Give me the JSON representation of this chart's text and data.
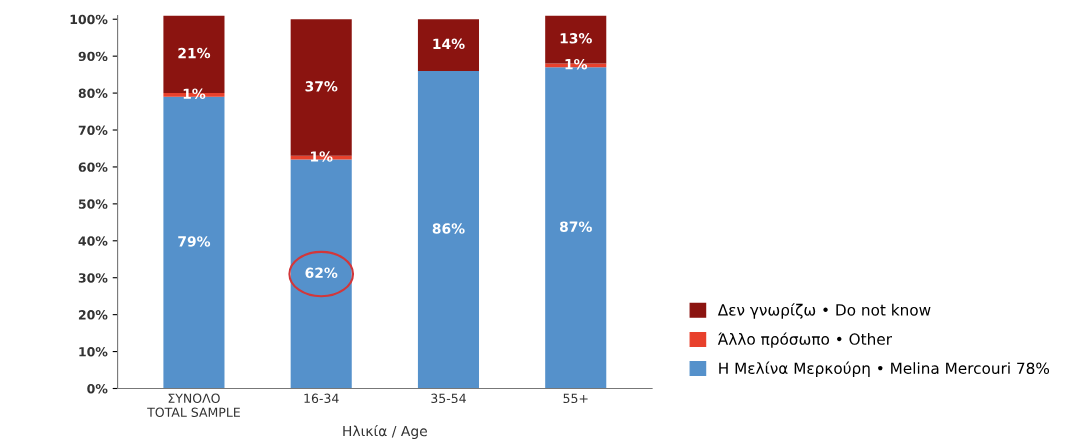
{
  "chart_data": {
    "type": "bar",
    "stacked": true,
    "xlabel": "Ηλικία / Age",
    "categories": [
      "ΣΥΝΟΛΟ\nTOTAL SAMPLE",
      "16-34",
      "35-54",
      "55+"
    ],
    "series": [
      {
        "name": "Η Μελίνα Μερκούρη • Melina Mercouri 78%",
        "color": "#5591cb",
        "values": [
          79,
          62,
          86,
          87
        ],
        "value_labels": [
          "79%",
          "62%",
          "86%",
          "87%"
        ]
      },
      {
        "name": "Άλλο πρόσωπο • Other",
        "color": "#e8412c",
        "values": [
          1,
          1,
          0,
          1
        ],
        "value_labels": [
          "1%",
          "1%",
          null,
          "1%"
        ]
      },
      {
        "name": "Δεν γνωρίζω • Do not know",
        "color": "#8b1410",
        "values": [
          21,
          37,
          14,
          13
        ],
        "value_labels": [
          "21%",
          "37%",
          "14%",
          "13%"
        ]
      }
    ],
    "ylim": [
      0,
      101
    ],
    "yticks": [
      {
        "value": 0,
        "label": "0%"
      },
      {
        "value": 10,
        "label": "10%"
      },
      {
        "value": 20,
        "label": "20%"
      },
      {
        "value": 30,
        "label": "30%"
      },
      {
        "value": 40,
        "label": "40%"
      },
      {
        "value": 50,
        "label": "50%"
      },
      {
        "value": 60,
        "label": "60%"
      },
      {
        "value": 70,
        "label": "70%"
      },
      {
        "value": 80,
        "label": "80%"
      },
      {
        "value": 90,
        "label": "90%"
      },
      {
        "value": 100,
        "label": "100%"
      }
    ],
    "grid": false,
    "legend": "bottom right"
  }
}
